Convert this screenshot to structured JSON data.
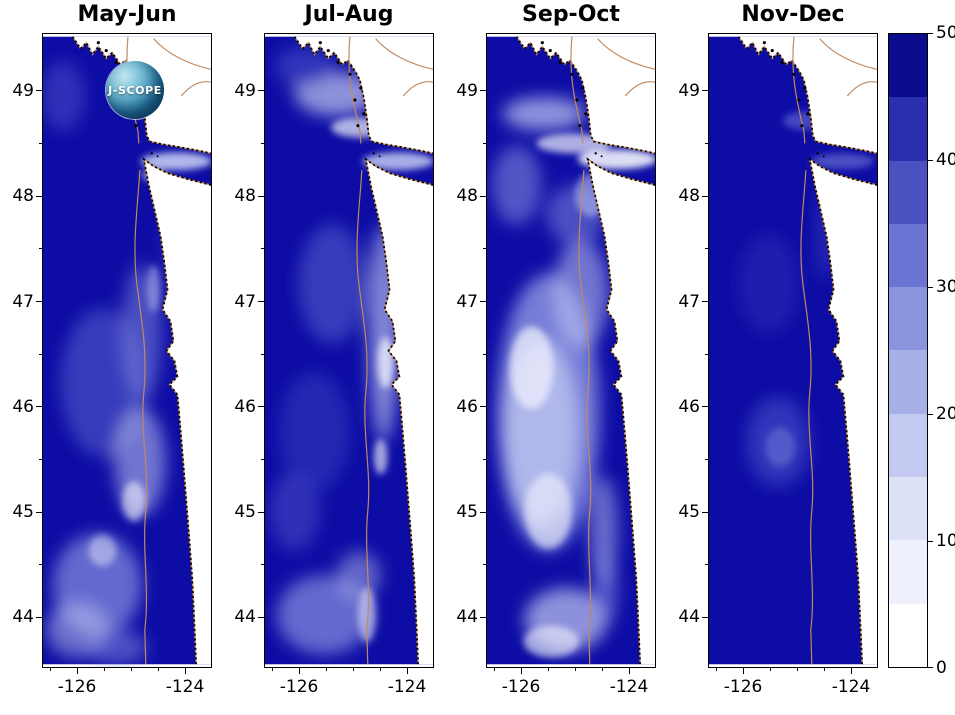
{
  "figure": {
    "logo_text": "J-SCOPE",
    "background": "#ffffff"
  },
  "chart_data": {
    "type": "heatmap",
    "title": "",
    "description": "Four bi-monthly map panels of a modeled ocean field off the Washington / Vancouver Island coast (J-SCOPE forecast style), shaded from white (0) to dark navy (50). Land is white with a black-dotted coastline and tan coastline/shelf-break contours.",
    "panels": [
      {
        "title": "May-Jun",
        "pattern_summary": "mostly dark navy (~40-50) with lighter (~10-30) patches nearshore and in the southwest corner"
      },
      {
        "title": "Jul-Aug",
        "pattern_summary": "dark offshore; light (~5-25) band along the coast, light streaks near Vancouver Island and in the south"
      },
      {
        "title": "Sep-Oct",
        "pattern_summary": "lightest panel: broad pale region (~5-25) across the center and south; very light strait and bottom patches"
      },
      {
        "title": "Nov-Dec",
        "pattern_summary": "nearly uniform dark navy (~45-50) with a faint lighter smudge mid-panel"
      }
    ],
    "x_ticks": [
      -126,
      -124
    ],
    "y_ticks": [
      49,
      48,
      47,
      46,
      45,
      44
    ],
    "lon_range": [
      -126.65,
      -123.5
    ],
    "lat_range": [
      43.52,
      49.55
    ],
    "colorbar": {
      "min": 0,
      "max": 50,
      "ticks": [
        50,
        40,
        30,
        20,
        10,
        0
      ],
      "segment_colors_bottom_to_top": [
        "#ffffff",
        "#eef0fb",
        "#dde1f7",
        "#c3c9f0",
        "#a8b0e8",
        "#8a93de",
        "#6a74d2",
        "#4a52c2",
        "#2a2fae",
        "#0c0c8f"
      ]
    },
    "map_colors": {
      "ocean_dark": "#0d0da5",
      "land": "#ffffff",
      "coastline_dots": "#000000",
      "contour_tan": "#c08a60"
    }
  }
}
